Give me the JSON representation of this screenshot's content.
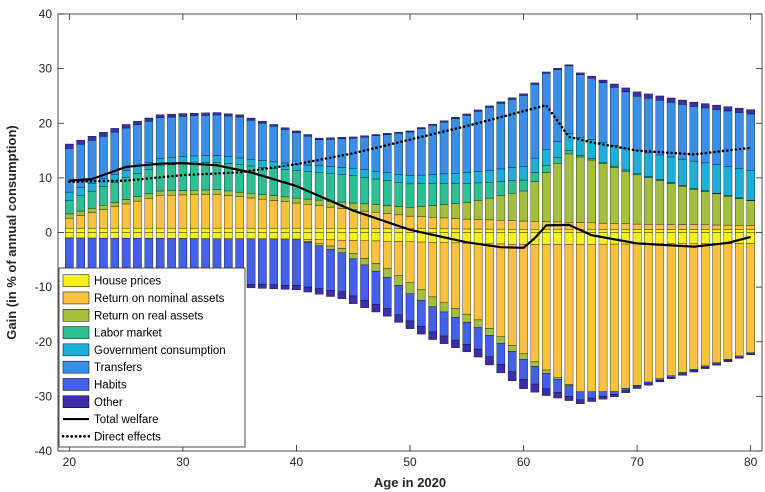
{
  "chart_data": {
    "type": "bar",
    "stacked": true,
    "xlabel": "Age in 2020",
    "ylabel": "Gain (in % of annual consumption)",
    "xlim": [
      19,
      81
    ],
    "ylim": [
      -40,
      40
    ],
    "xticks": [
      20,
      30,
      40,
      50,
      60,
      70,
      80
    ],
    "yticks": [
      -40,
      -30,
      -20,
      -10,
      0,
      10,
      20,
      30,
      40
    ],
    "grid": false,
    "legend_position": "bottom-left",
    "ages_range": [
      20,
      80
    ],
    "series": [
      {
        "name": "House prices",
        "color": "#f2f21a",
        "pos_keys": [
          [
            20,
            0.8
          ],
          [
            40,
            0.8
          ],
          [
            60,
            0.6
          ],
          [
            80,
            0.5
          ]
        ],
        "neg_keys": [
          [
            20,
            -1.0
          ],
          [
            40,
            -1.2
          ],
          [
            60,
            -2.2
          ],
          [
            80,
            -2.0
          ]
        ]
      },
      {
        "name": "Return on nominal assets",
        "color": "#f9c13d",
        "pos_keys": [
          [
            20,
            1.8
          ],
          [
            28,
            6.0
          ],
          [
            33,
            6.2
          ],
          [
            40,
            4.6
          ],
          [
            45,
            3.4
          ],
          [
            50,
            2.3
          ],
          [
            55,
            1.8
          ],
          [
            60,
            1.5
          ],
          [
            70,
            1.0
          ],
          [
            80,
            0.8
          ]
        ],
        "neg_keys": [
          [
            20,
            0
          ],
          [
            40,
            0
          ],
          [
            44,
            -1.5
          ],
          [
            48,
            -5
          ],
          [
            52,
            -10
          ],
          [
            56,
            -14
          ],
          [
            60,
            -20
          ],
          [
            62,
            -23
          ],
          [
            65,
            -27
          ],
          [
            68,
            -27
          ],
          [
            75,
            -23
          ],
          [
            80,
            -20
          ]
        ]
      },
      {
        "name": "Return on real assets",
        "color": "#a4bf3c",
        "pos_keys": [
          [
            20,
            0.8
          ],
          [
            30,
            0.8
          ],
          [
            40,
            0.9
          ],
          [
            50,
            1.6
          ],
          [
            55,
            3.0
          ],
          [
            60,
            5.5
          ],
          [
            64,
            12.5
          ],
          [
            66,
            11.5
          ],
          [
            70,
            9.0
          ],
          [
            75,
            6.5
          ],
          [
            80,
            4.5
          ]
        ],
        "neg_keys": [
          [
            20,
            0
          ],
          [
            40,
            0
          ],
          [
            44,
            -0.8
          ],
          [
            50,
            -2.0
          ],
          [
            55,
            -1.5
          ],
          [
            60,
            -1.0
          ],
          [
            65,
            0
          ],
          [
            80,
            0
          ]
        ]
      },
      {
        "name": "Labor market",
        "color": "#2cbf94",
        "pos_keys": [
          [
            20,
            2.5
          ],
          [
            25,
            4.0
          ],
          [
            30,
            5.0
          ],
          [
            35,
            5.0
          ],
          [
            40,
            5.0
          ],
          [
            45,
            5.0
          ],
          [
            50,
            4.3
          ],
          [
            55,
            3.5
          ],
          [
            60,
            2.0
          ],
          [
            63,
            1.0
          ],
          [
            65,
            0.3
          ],
          [
            70,
            0.2
          ],
          [
            80,
            0.1
          ]
        ],
        "neg_keys": [
          [
            20,
            0
          ],
          [
            80,
            0
          ]
        ]
      },
      {
        "name": "Government consumption",
        "color": "#1cb0d9",
        "pos_keys": [
          [
            20,
            1.5
          ],
          [
            30,
            1.3
          ],
          [
            40,
            1.2
          ],
          [
            50,
            1.5
          ],
          [
            60,
            2.5
          ],
          [
            65,
            3.3
          ],
          [
            70,
            4.2
          ],
          [
            75,
            5.0
          ],
          [
            80,
            5.5
          ]
        ],
        "neg_keys": [
          [
            20,
            0
          ],
          [
            80,
            0
          ]
        ]
      },
      {
        "name": "Transfers",
        "color": "#3b8ee8",
        "pos_keys": [
          [
            20,
            8.0
          ],
          [
            25,
            7.7
          ],
          [
            30,
            7.3
          ],
          [
            35,
            7.5
          ],
          [
            40,
            5.8
          ],
          [
            42,
            4.8
          ],
          [
            45,
            5.5
          ],
          [
            50,
            8.0
          ],
          [
            55,
            10.5
          ],
          [
            60,
            13.0
          ],
          [
            62,
            14.0
          ],
          [
            65,
            11.5
          ],
          [
            70,
            10.0
          ],
          [
            75,
            10.0
          ],
          [
            80,
            10.3
          ]
        ],
        "neg_keys": [
          [
            20,
            0
          ],
          [
            80,
            0
          ]
        ]
      },
      {
        "name": "Habits",
        "color": "#4460ea",
        "pos_keys": [
          [
            20,
            0
          ],
          [
            80,
            0
          ]
        ],
        "neg_keys": [
          [
            20,
            -7.5
          ],
          [
            30,
            -8.0
          ],
          [
            40,
            -8.5
          ],
          [
            45,
            -6.8
          ],
          [
            50,
            -5.0
          ],
          [
            55,
            -4.0
          ],
          [
            60,
            -3.7
          ],
          [
            65,
            -1.5
          ],
          [
            68,
            -0.5
          ],
          [
            70,
            -0.3
          ],
          [
            80,
            -0.2
          ]
        ]
      },
      {
        "name": "Other",
        "color": "#3a2fa8",
        "pos_keys": [
          [
            20,
            0.8
          ],
          [
            30,
            0.5
          ],
          [
            40,
            0.3
          ],
          [
            50,
            0.2
          ],
          [
            60,
            0.3
          ],
          [
            64,
            0.2
          ],
          [
            70,
            0.8
          ],
          [
            80,
            0.8
          ]
        ],
        "neg_keys": [
          [
            20,
            -0.4
          ],
          [
            30,
            -0.5
          ],
          [
            40,
            -0.8
          ],
          [
            45,
            -1.4
          ],
          [
            50,
            -1.4
          ],
          [
            55,
            -1.4
          ],
          [
            60,
            -1.7
          ],
          [
            64,
            -0.8
          ],
          [
            70,
            -0.3
          ],
          [
            80,
            -0.2
          ]
        ]
      }
    ],
    "lines": [
      {
        "name": "Total welfare",
        "style": "solid",
        "color": "#000000",
        "points": [
          [
            20,
            9.5
          ],
          [
            22,
            9.8
          ],
          [
            25,
            12.0
          ],
          [
            28,
            12.6
          ],
          [
            30,
            12.7
          ],
          [
            33,
            12.3
          ],
          [
            36,
            11.0
          ],
          [
            40,
            8.5
          ],
          [
            45,
            4.0
          ],
          [
            50,
            0.5
          ],
          [
            55,
            -1.8
          ],
          [
            58,
            -2.7
          ],
          [
            60,
            -2.8
          ],
          [
            61,
            -1.0
          ],
          [
            62,
            1.3
          ],
          [
            64,
            1.4
          ],
          [
            66,
            -0.5
          ],
          [
            70,
            -2.0
          ],
          [
            75,
            -2.6
          ],
          [
            78,
            -1.9
          ],
          [
            80,
            -0.8
          ]
        ]
      },
      {
        "name": "Direct effects",
        "style": "dotted",
        "color": "#000000",
        "points": [
          [
            20,
            9.3
          ],
          [
            25,
            9.5
          ],
          [
            30,
            10.5
          ],
          [
            35,
            11.0
          ],
          [
            40,
            12.5
          ],
          [
            45,
            14.5
          ],
          [
            50,
            17.0
          ],
          [
            55,
            19.5
          ],
          [
            60,
            22.2
          ],
          [
            62,
            23.3
          ],
          [
            64,
            17.5
          ],
          [
            66,
            16.5
          ],
          [
            70,
            15.0
          ],
          [
            75,
            14.3
          ],
          [
            80,
            15.5
          ]
        ]
      }
    ]
  }
}
